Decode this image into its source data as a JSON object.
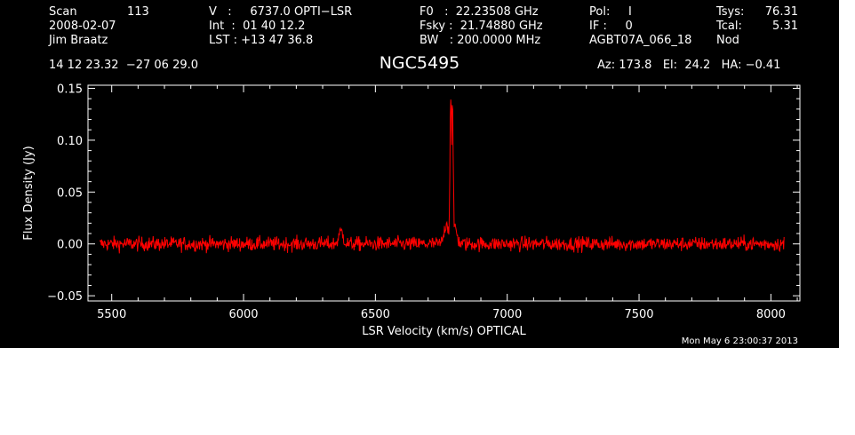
{
  "header": {
    "col1": {
      "scan_label": "Scan",
      "scan_value": "113",
      "date": "2008-02-07",
      "observer": "Jim Braatz",
      "coords": "14 12 23.32  −27 06 29.0"
    },
    "col2": {
      "v_line": "V   :     6737.0 OPTI−LSR",
      "int_line": "Int  :  01 40 12.2",
      "lst_line": "LST : +13 47 36.8"
    },
    "col3": {
      "f0_line": "F0   :  22.23508 GHz",
      "fsky_line": "Fsky :  21.74880 GHz",
      "bw_line": "BW   : 200.0000 MHz"
    },
    "col4": {
      "pol_line": "Pol:     I",
      "if_line": "IF :     0",
      "project": "AGBT07A_066_18"
    },
    "col5": {
      "tsys_label": "Tsys:",
      "tsys_value": "76.31",
      "tcal_label": "Tcal:",
      "tcal_value": "5.31",
      "mode": "Nod"
    },
    "azelha": "Az: 173.8   El:  24.2   HA: −0.41"
  },
  "timestamp": "Mon May  6 23:00:37 2013",
  "colors": {
    "background": "#000000",
    "axes": "#ffffff",
    "trace": "#ff0000"
  },
  "chart_data": {
    "type": "line",
    "title": "NGC5495",
    "xlabel": "LSR Velocity (km/s) OPTICAL",
    "ylabel": "Flux Density (Jy)",
    "xlim": [
      5410,
      8110
    ],
    "ylim": [
      -0.055,
      0.153
    ],
    "xticks": [
      5500,
      6000,
      6500,
      7000,
      7500,
      8000
    ],
    "xtick_labels": [
      "5500",
      "6000",
      "6500",
      "7000",
      "7500",
      "8000"
    ],
    "yticks": [
      -0.05,
      0.0,
      0.05,
      0.1,
      0.15
    ],
    "ytick_labels": [
      "−0.05",
      "0.00",
      "0.05",
      "0.10",
      "0.15"
    ],
    "grid": false,
    "series": [
      {
        "color": "#ff0000",
        "x_range": [
          5455,
          8050
        ],
        "noise_rms": 0.0035,
        "features": [
          {
            "x": 6370,
            "y": 0.012
          },
          {
            "x": 6770,
            "y": 0.02
          },
          {
            "x": 6786,
            "y": 0.145
          },
          {
            "x": 6792,
            "y": 0.135
          },
          {
            "x": 6800,
            "y": 0.018
          }
        ]
      }
    ]
  }
}
